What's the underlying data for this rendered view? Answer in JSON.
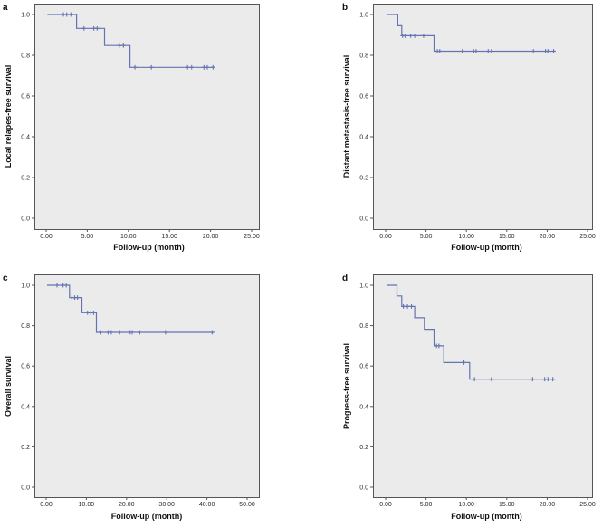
{
  "figure": {
    "background": "#ffffff",
    "panel_bg": "#ebebeb",
    "frame_color": "#555555",
    "curve_color": "#6474b2",
    "text_color": "#111111",
    "xlabel": "Follow-up (month)"
  },
  "chart_data": [
    {
      "type": "line",
      "subtype": "kaplan-meier-step",
      "panel": "a",
      "ylabel": "Local relapes-free survival",
      "xlabel": "Follow-up (month)",
      "xlim": [
        0,
        25
      ],
      "ylim": [
        0.0,
        1.0
      ],
      "xticks": [
        "0.00",
        "5.00",
        "10.00",
        "15.00",
        "20.00",
        "25.00"
      ],
      "yticks": [
        "0.0",
        "0.2",
        "0.4",
        "0.6",
        "0.8",
        "1.0"
      ],
      "grid": false,
      "legend": "none",
      "steps": [
        [
          0.15,
          1.0
        ],
        [
          3.7,
          0.932
        ],
        [
          7.1,
          0.848
        ],
        [
          10.2,
          0.741
        ]
      ],
      "end_x": 20.6,
      "censors": [
        [
          2.1,
          1.0
        ],
        [
          2.5,
          1.0
        ],
        [
          3.0,
          1.0
        ],
        [
          4.6,
          0.932
        ],
        [
          5.8,
          0.932
        ],
        [
          6.2,
          0.932
        ],
        [
          8.9,
          0.848
        ],
        [
          9.4,
          0.848
        ],
        [
          10.8,
          0.741
        ],
        [
          12.8,
          0.741
        ],
        [
          17.2,
          0.741
        ],
        [
          17.7,
          0.741
        ],
        [
          19.2,
          0.741
        ],
        [
          19.6,
          0.741
        ],
        [
          20.3,
          0.741
        ]
      ]
    },
    {
      "type": "line",
      "subtype": "kaplan-meier-step",
      "panel": "b",
      "ylabel": "Distant metastasis-free survival",
      "xlabel": "Follow-up (month)",
      "xlim": [
        0,
        25
      ],
      "ylim": [
        0.0,
        1.0
      ],
      "xticks": [
        "0.00",
        "5.00",
        "10.00",
        "15.00",
        "20.00",
        "25.00"
      ],
      "yticks": [
        "0.0",
        "0.2",
        "0.4",
        "0.6",
        "0.8",
        "1.0"
      ],
      "grid": false,
      "legend": "none",
      "steps": [
        [
          0.1,
          1.0
        ],
        [
          1.5,
          0.945
        ],
        [
          2.0,
          0.896
        ],
        [
          6.0,
          0.82
        ]
      ],
      "end_x": 21.0,
      "censors": [
        [
          2.1,
          0.896
        ],
        [
          2.4,
          0.896
        ],
        [
          3.1,
          0.896
        ],
        [
          3.6,
          0.896
        ],
        [
          4.7,
          0.896
        ],
        [
          6.4,
          0.82
        ],
        [
          6.7,
          0.82
        ],
        [
          9.5,
          0.82
        ],
        [
          10.9,
          0.82
        ],
        [
          11.2,
          0.82
        ],
        [
          12.7,
          0.82
        ],
        [
          13.1,
          0.82
        ],
        [
          18.3,
          0.82
        ],
        [
          19.8,
          0.82
        ],
        [
          20.1,
          0.82
        ],
        [
          20.8,
          0.82
        ]
      ]
    },
    {
      "type": "line",
      "subtype": "kaplan-meier-step",
      "panel": "c",
      "ylabel": "Overall survival",
      "xlabel": "Follow-up (month)",
      "xlim": [
        0,
        50
      ],
      "ylim": [
        0.0,
        1.0
      ],
      "xticks": [
        "0.00",
        "10.00",
        "20.00",
        "30.00",
        "40.00",
        "50.00"
      ],
      "yticks": [
        "0.0",
        "0.2",
        "0.4",
        "0.6",
        "0.8",
        "1.0"
      ],
      "grid": false,
      "legend": "none",
      "steps": [
        [
          0.2,
          1.0
        ],
        [
          5.8,
          0.939
        ],
        [
          8.9,
          0.864
        ],
        [
          12.5,
          0.767
        ]
      ],
      "end_x": 41.8,
      "censors": [
        [
          2.7,
          1.0
        ],
        [
          4.2,
          1.0
        ],
        [
          5.0,
          1.0
        ],
        [
          6.4,
          0.939
        ],
        [
          7.1,
          0.939
        ],
        [
          7.8,
          0.939
        ],
        [
          10.3,
          0.864
        ],
        [
          11.1,
          0.864
        ],
        [
          11.8,
          0.864
        ],
        [
          13.6,
          0.767
        ],
        [
          15.4,
          0.767
        ],
        [
          16.2,
          0.767
        ],
        [
          18.3,
          0.767
        ],
        [
          20.9,
          0.767
        ],
        [
          21.4,
          0.767
        ],
        [
          23.3,
          0.767
        ],
        [
          29.7,
          0.767
        ],
        [
          41.3,
          0.767
        ]
      ]
    },
    {
      "type": "line",
      "subtype": "kaplan-meier-step",
      "panel": "d",
      "ylabel": "Progress-free survival",
      "xlabel": "Follow-up (month)",
      "xlim": [
        0,
        25
      ],
      "ylim": [
        0.0,
        1.0
      ],
      "xticks": [
        "0.00",
        "5.00",
        "10.00",
        "15.00",
        "20.00",
        "25.00"
      ],
      "yticks": [
        "0.0",
        "0.2",
        "0.4",
        "0.6",
        "0.8",
        "1.0"
      ],
      "grid": false,
      "legend": "none",
      "steps": [
        [
          0.15,
          1.0
        ],
        [
          1.4,
          0.947
        ],
        [
          2.0,
          0.895
        ],
        [
          3.6,
          0.839
        ],
        [
          4.8,
          0.782
        ],
        [
          6.0,
          0.7
        ],
        [
          7.2,
          0.617
        ],
        [
          10.4,
          0.535
        ]
      ],
      "end_x": 21.0,
      "censors": [
        [
          2.2,
          0.895
        ],
        [
          2.7,
          0.895
        ],
        [
          3.2,
          0.895
        ],
        [
          6.3,
          0.7
        ],
        [
          6.6,
          0.7
        ],
        [
          9.7,
          0.617
        ],
        [
          11.0,
          0.535
        ],
        [
          13.1,
          0.535
        ],
        [
          18.2,
          0.535
        ],
        [
          19.7,
          0.535
        ],
        [
          20.1,
          0.535
        ],
        [
          20.7,
          0.535
        ]
      ]
    }
  ]
}
